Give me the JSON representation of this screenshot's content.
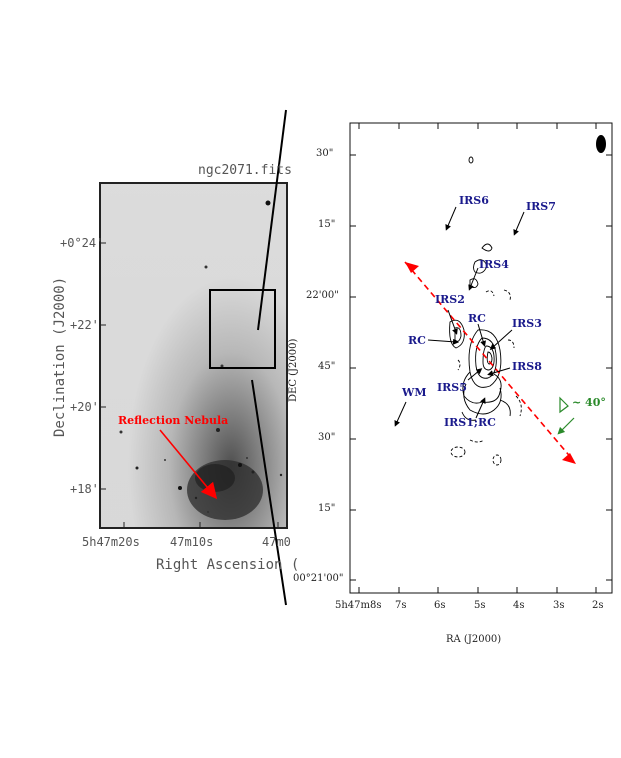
{
  "left_panel": {
    "title": "ngc2071.fits",
    "xlabel": "Right Ascension (",
    "ylabel": "Declination (J2000)",
    "xticks": [
      "5h47m20s",
      "47m10s",
      "47m0"
    ],
    "yticks": [
      "+0°24'",
      "+22'",
      "+20'",
      "+18'"
    ],
    "annotation": "Reflection Nebula"
  },
  "right_panel": {
    "xlabel": "RA (J2000)",
    "ylabel": "DEC (J2000)",
    "xticks": [
      "5h47m8s",
      "7s",
      "6s",
      "5s",
      "4s",
      "3s",
      "2s"
    ],
    "yticks": [
      "30\"",
      "15\"",
      "22'00\"",
      "45\"",
      "30\"",
      "15\"",
      "00°21'00\""
    ],
    "sources": [
      "IRS6",
      "IRS7",
      "IRS4",
      "IRS2",
      "RC",
      "IRS3",
      "RC",
      "IRS8",
      "IRS5",
      "WM",
      "IRS1;RC"
    ],
    "angle_label": "~ 40°"
  },
  "colors": {
    "red_arrow": "#ff0000",
    "blue_labels": "#1a1a8c",
    "green": "#2a8a2a"
  }
}
